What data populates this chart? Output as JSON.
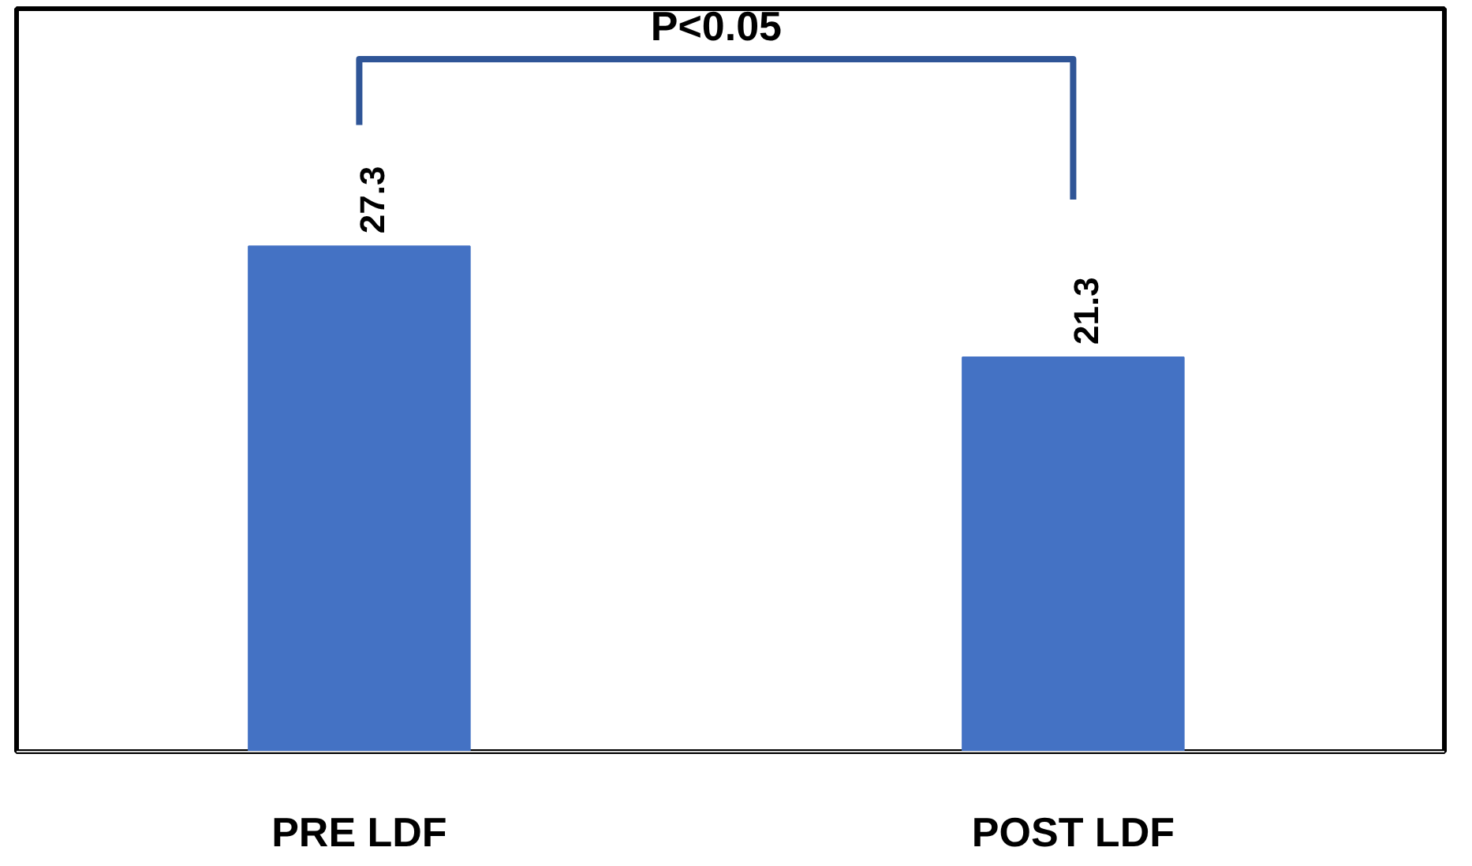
{
  "chart_data": {
    "type": "bar",
    "categories": [
      "PRE LDF",
      "POST LDF"
    ],
    "values": [
      27.3,
      21.3
    ],
    "color": "#4472c4",
    "data_labels": true,
    "annotations": [
      "P<0.05"
    ]
  }
}
